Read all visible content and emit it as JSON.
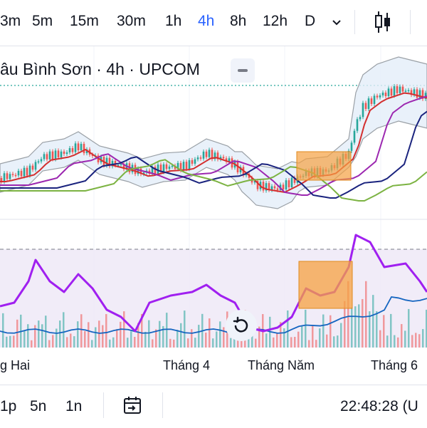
{
  "toolbar": {
    "timeframes": [
      "3m",
      "5m",
      "15m",
      "30m",
      "1h",
      "4h",
      "8h",
      "12h",
      "D"
    ],
    "active_timeframe": "4h",
    "chevron_icon": "chevron-down-icon",
    "chart_type_icon": "candlestick-icon"
  },
  "legend": {
    "symbol_text": "âu Bình Sơn · 4h · UPCOM",
    "collapse_icon": "minus-icon"
  },
  "xaxis": {
    "labels": [
      "g Hai",
      "Tháng 4",
      "Tháng Năm",
      "Tháng 6"
    ]
  },
  "reset_icon": "reset-icon",
  "bottombar": {
    "ranges": [
      "1p",
      "5n",
      "1n"
    ],
    "calendar_icon": "calendar-goto-icon",
    "clock": "22:48:28 (U"
  },
  "colors": {
    "accent": "#2962ff",
    "up": "#26a69a",
    "down": "#ef5350",
    "rsi_line": "#a020f0",
    "highlight": "#f5a142"
  }
}
